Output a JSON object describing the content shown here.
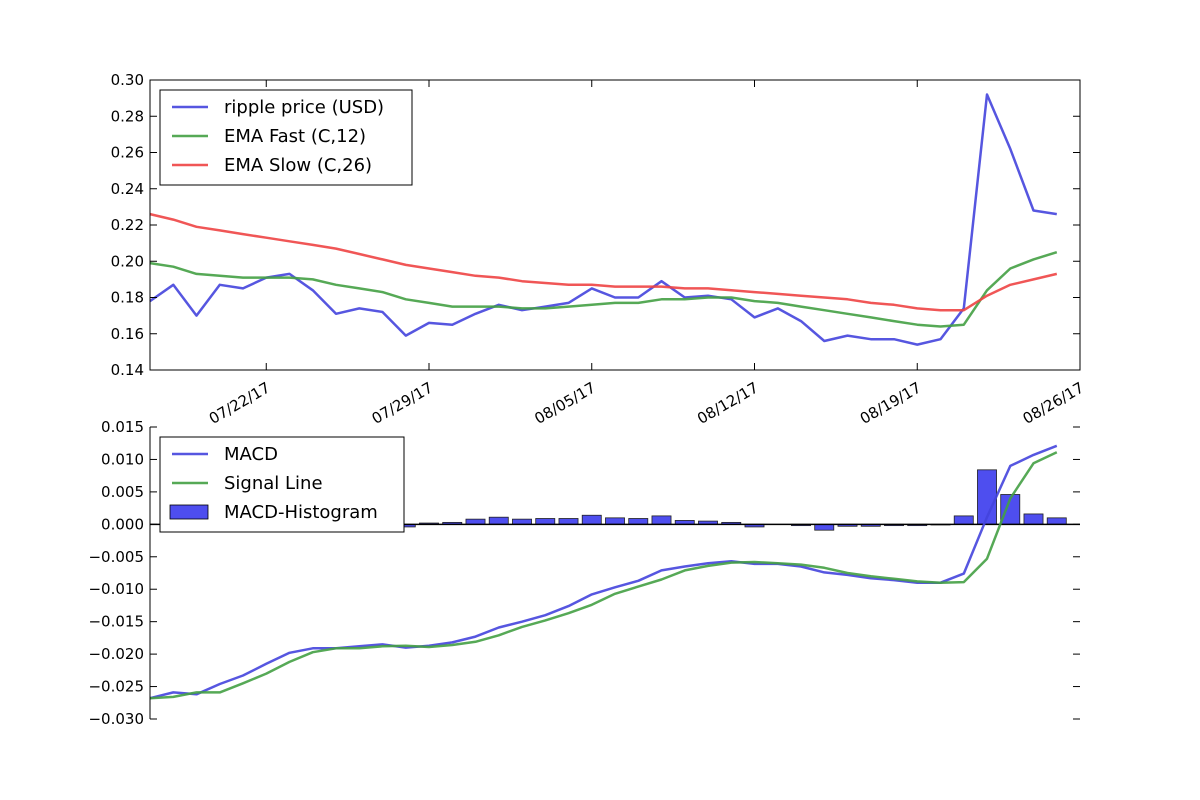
{
  "chart_data": [
    {
      "type": "line",
      "panel": "price",
      "x_tick_labels": [
        "07/22/17",
        "07/29/17",
        "08/05/17",
        "08/12/17",
        "08/19/17",
        "08/26/17"
      ],
      "y_tick_labels": [
        "0.14",
        "0.16",
        "0.18",
        "0.20",
        "0.22",
        "0.24",
        "0.26",
        "0.28",
        "0.30"
      ],
      "ylim": [
        0.14,
        0.3
      ],
      "xlim": [
        "2017-07-17",
        "2017-08-26"
      ],
      "grid": false,
      "legend_position": "top-left",
      "x_start_date": "2017-07-17",
      "series": [
        {
          "name": "ripple price (USD)",
          "color": "#4444dd",
          "values": [
            0.178,
            0.187,
            0.17,
            0.187,
            0.185,
            0.191,
            0.193,
            0.184,
            0.171,
            0.174,
            0.172,
            0.159,
            0.166,
            0.165,
            0.171,
            0.176,
            0.173,
            0.175,
            0.177,
            0.185,
            0.18,
            0.18,
            0.189,
            0.18,
            0.181,
            0.179,
            0.169,
            0.174,
            0.167,
            0.156,
            0.159,
            0.157,
            0.157,
            0.154,
            0.157,
            0.174,
            0.292,
            0.262,
            0.228,
            0.226
          ]
        },
        {
          "name": "EMA Fast (C,12)",
          "color": "#44a044",
          "values": [
            0.199,
            0.197,
            0.193,
            0.192,
            0.191,
            0.191,
            0.191,
            0.19,
            0.187,
            0.185,
            0.183,
            0.179,
            0.177,
            0.175,
            0.175,
            0.175,
            0.174,
            0.174,
            0.175,
            0.176,
            0.177,
            0.177,
            0.179,
            0.179,
            0.18,
            0.18,
            0.178,
            0.177,
            0.175,
            0.173,
            0.171,
            0.169,
            0.167,
            0.165,
            0.164,
            0.165,
            0.184,
            0.196,
            0.201,
            0.205
          ]
        },
        {
          "name": "EMA Slow (C,26)",
          "color": "#ee4444",
          "values": [
            0.226,
            0.223,
            0.219,
            0.217,
            0.215,
            0.213,
            0.211,
            0.209,
            0.207,
            0.204,
            0.201,
            0.198,
            0.196,
            0.194,
            0.192,
            0.191,
            0.189,
            0.188,
            0.187,
            0.187,
            0.186,
            0.186,
            0.186,
            0.185,
            0.185,
            0.184,
            0.183,
            0.182,
            0.181,
            0.18,
            0.179,
            0.177,
            0.176,
            0.174,
            0.173,
            0.173,
            0.181,
            0.187,
            0.19,
            0.193
          ]
        }
      ]
    },
    {
      "type": "line",
      "panel": "macd",
      "y_tick_labels": [
        "0.015",
        "0.010",
        "0.005",
        "0.000",
        "−0.005",
        "−0.010",
        "−0.015",
        "−0.020",
        "−0.025",
        "−0.030"
      ],
      "ylim": [
        -0.03,
        0.015
      ],
      "grid": false,
      "legend_position": "top-left",
      "series": [
        {
          "name": "MACD",
          "color": "#4444dd",
          "values": [
            -0.0268,
            -0.0259,
            -0.0262,
            -0.0246,
            -0.0233,
            -0.0215,
            -0.0198,
            -0.0191,
            -0.0191,
            -0.0188,
            -0.0185,
            -0.019,
            -0.0187,
            -0.0182,
            -0.0173,
            -0.0159,
            -0.015,
            -0.014,
            -0.0126,
            -0.0108,
            -0.0097,
            -0.0087,
            -0.0071,
            -0.0065,
            -0.006,
            -0.0057,
            -0.0061,
            -0.0061,
            -0.0065,
            -0.0074,
            -0.0078,
            -0.0083,
            -0.0086,
            -0.009,
            -0.009,
            -0.0076,
            0.0011,
            0.009,
            0.0107,
            0.0121
          ]
        },
        {
          "name": "Signal Line",
          "color": "#44a044",
          "values": [
            -0.0268,
            -0.0266,
            -0.0259,
            -0.0259,
            -0.0245,
            -0.023,
            -0.0212,
            -0.0197,
            -0.0191,
            -0.0191,
            -0.0188,
            -0.0187,
            -0.0189,
            -0.0186,
            -0.0181,
            -0.0171,
            -0.0158,
            -0.0148,
            -0.0137,
            -0.0124,
            -0.0107,
            -0.0096,
            -0.0085,
            -0.0071,
            -0.0064,
            -0.0059,
            -0.0058,
            -0.006,
            -0.0062,
            -0.0067,
            -0.0075,
            -0.008,
            -0.0084,
            -0.0088,
            -0.009,
            -0.0089,
            -0.0053,
            0.004,
            0.0094,
            0.0111
          ]
        },
        {
          "name": "MACD-Histogram",
          "type": "bar",
          "color": "#4444ee",
          "values": [
            0,
            0,
            0,
            0,
            0,
            0,
            0,
            0,
            0,
            0,
            0,
            -0.0004,
            0.0002,
            0.0003,
            0.0008,
            0.0011,
            0.0008,
            0.0009,
            0.0009,
            0.0014,
            0.001,
            0.0009,
            0.0013,
            0.0006,
            0.0005,
            0.0003,
            -0.0004,
            0,
            -0.0002,
            -0.0009,
            -0.0003,
            -0.0003,
            -0.0002,
            -0.0002,
            -0.0001,
            0.0013,
            0.0084,
            0.0046,
            0.0016,
            0.001
          ]
        }
      ]
    }
  ]
}
